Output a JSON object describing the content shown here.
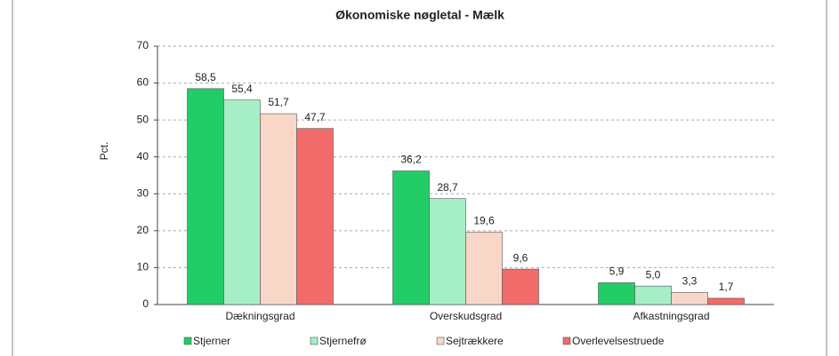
{
  "chart_data": {
    "type": "bar",
    "title": "Økonomiske nøgletal - Mælk",
    "y_label": "Pct.",
    "categories": [
      "Dækningsgrad",
      "Overskudsgrad",
      "Afkastningsgrad"
    ],
    "series": [
      {
        "name": "Stjerner",
        "color": "#22cc66",
        "values": [
          58.5,
          36.2,
          5.9
        ],
        "value_labels": [
          "58,5",
          "36,2",
          "5,9"
        ]
      },
      {
        "name": "Stjernefrø",
        "color": "#a6efc6",
        "values": [
          55.4,
          28.7,
          5.0
        ],
        "value_labels": [
          "55,4",
          "28,7",
          "5,0"
        ]
      },
      {
        "name": "Sejtrækkere",
        "color": "#f8d6c8",
        "values": [
          51.7,
          19.6,
          3.3
        ],
        "value_labels": [
          "51,7",
          "19,6",
          "3,3"
        ]
      },
      {
        "name": "Overlevelsestruede",
        "color": "#f26b6b",
        "values": [
          47.7,
          9.6,
          1.7
        ],
        "value_labels": [
          "47,7",
          "9,6",
          "1,7"
        ]
      }
    ],
    "ylim": [
      0,
      70
    ],
    "yticks": [
      0,
      10,
      20,
      30,
      40,
      50,
      60,
      70
    ],
    "grid": true
  }
}
